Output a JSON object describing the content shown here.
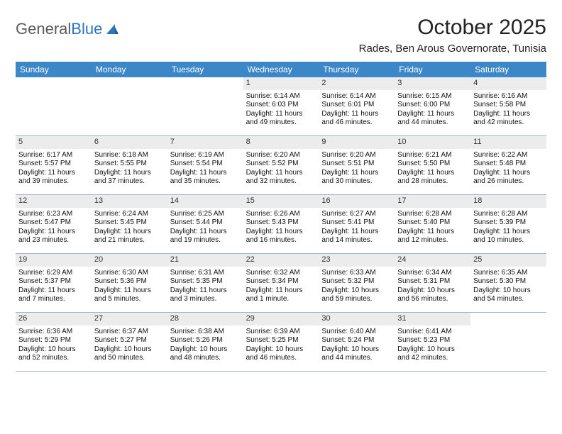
{
  "logo": {
    "word1": "General",
    "word2": "Blue"
  },
  "title": "October 2025",
  "location": "Rades, Ben Arous Governorate, Tunisia",
  "colors": {
    "header_bg": "#3b87c8",
    "header_text": "#ffffff",
    "daynum_bg": "#ececec",
    "row_border": "#9fb6c8",
    "logo_gray": "#5a5a5a",
    "logo_blue": "#2a74c1"
  },
  "weekdays": [
    "Sunday",
    "Monday",
    "Tuesday",
    "Wednesday",
    "Thursday",
    "Friday",
    "Saturday"
  ],
  "weeks": [
    [
      null,
      null,
      null,
      {
        "n": "1",
        "sr": "6:14 AM",
        "ss": "6:03 PM",
        "dl": "11 hours and 49 minutes."
      },
      {
        "n": "2",
        "sr": "6:14 AM",
        "ss": "6:01 PM",
        "dl": "11 hours and 46 minutes."
      },
      {
        "n": "3",
        "sr": "6:15 AM",
        "ss": "6:00 PM",
        "dl": "11 hours and 44 minutes."
      },
      {
        "n": "4",
        "sr": "6:16 AM",
        "ss": "5:58 PM",
        "dl": "11 hours and 42 minutes."
      }
    ],
    [
      {
        "n": "5",
        "sr": "6:17 AM",
        "ss": "5:57 PM",
        "dl": "11 hours and 39 minutes."
      },
      {
        "n": "6",
        "sr": "6:18 AM",
        "ss": "5:55 PM",
        "dl": "11 hours and 37 minutes."
      },
      {
        "n": "7",
        "sr": "6:19 AM",
        "ss": "5:54 PM",
        "dl": "11 hours and 35 minutes."
      },
      {
        "n": "8",
        "sr": "6:20 AM",
        "ss": "5:52 PM",
        "dl": "11 hours and 32 minutes."
      },
      {
        "n": "9",
        "sr": "6:20 AM",
        "ss": "5:51 PM",
        "dl": "11 hours and 30 minutes."
      },
      {
        "n": "10",
        "sr": "6:21 AM",
        "ss": "5:50 PM",
        "dl": "11 hours and 28 minutes."
      },
      {
        "n": "11",
        "sr": "6:22 AM",
        "ss": "5:48 PM",
        "dl": "11 hours and 26 minutes."
      }
    ],
    [
      {
        "n": "12",
        "sr": "6:23 AM",
        "ss": "5:47 PM",
        "dl": "11 hours and 23 minutes."
      },
      {
        "n": "13",
        "sr": "6:24 AM",
        "ss": "5:45 PM",
        "dl": "11 hours and 21 minutes."
      },
      {
        "n": "14",
        "sr": "6:25 AM",
        "ss": "5:44 PM",
        "dl": "11 hours and 19 minutes."
      },
      {
        "n": "15",
        "sr": "6:26 AM",
        "ss": "5:43 PM",
        "dl": "11 hours and 16 minutes."
      },
      {
        "n": "16",
        "sr": "6:27 AM",
        "ss": "5:41 PM",
        "dl": "11 hours and 14 minutes."
      },
      {
        "n": "17",
        "sr": "6:28 AM",
        "ss": "5:40 PM",
        "dl": "11 hours and 12 minutes."
      },
      {
        "n": "18",
        "sr": "6:28 AM",
        "ss": "5:39 PM",
        "dl": "11 hours and 10 minutes."
      }
    ],
    [
      {
        "n": "19",
        "sr": "6:29 AM",
        "ss": "5:37 PM",
        "dl": "11 hours and 7 minutes."
      },
      {
        "n": "20",
        "sr": "6:30 AM",
        "ss": "5:36 PM",
        "dl": "11 hours and 5 minutes."
      },
      {
        "n": "21",
        "sr": "6:31 AM",
        "ss": "5:35 PM",
        "dl": "11 hours and 3 minutes."
      },
      {
        "n": "22",
        "sr": "6:32 AM",
        "ss": "5:34 PM",
        "dl": "11 hours and 1 minute."
      },
      {
        "n": "23",
        "sr": "6:33 AM",
        "ss": "5:32 PM",
        "dl": "10 hours and 59 minutes."
      },
      {
        "n": "24",
        "sr": "6:34 AM",
        "ss": "5:31 PM",
        "dl": "10 hours and 56 minutes."
      },
      {
        "n": "25",
        "sr": "6:35 AM",
        "ss": "5:30 PM",
        "dl": "10 hours and 54 minutes."
      }
    ],
    [
      {
        "n": "26",
        "sr": "6:36 AM",
        "ss": "5:29 PM",
        "dl": "10 hours and 52 minutes."
      },
      {
        "n": "27",
        "sr": "6:37 AM",
        "ss": "5:27 PM",
        "dl": "10 hours and 50 minutes."
      },
      {
        "n": "28",
        "sr": "6:38 AM",
        "ss": "5:26 PM",
        "dl": "10 hours and 48 minutes."
      },
      {
        "n": "29",
        "sr": "6:39 AM",
        "ss": "5:25 PM",
        "dl": "10 hours and 46 minutes."
      },
      {
        "n": "30",
        "sr": "6:40 AM",
        "ss": "5:24 PM",
        "dl": "10 hours and 44 minutes."
      },
      {
        "n": "31",
        "sr": "6:41 AM",
        "ss": "5:23 PM",
        "dl": "10 hours and 42 minutes."
      },
      null
    ]
  ],
  "labels": {
    "sunrise": "Sunrise:",
    "sunset": "Sunset:",
    "daylight": "Daylight:"
  }
}
